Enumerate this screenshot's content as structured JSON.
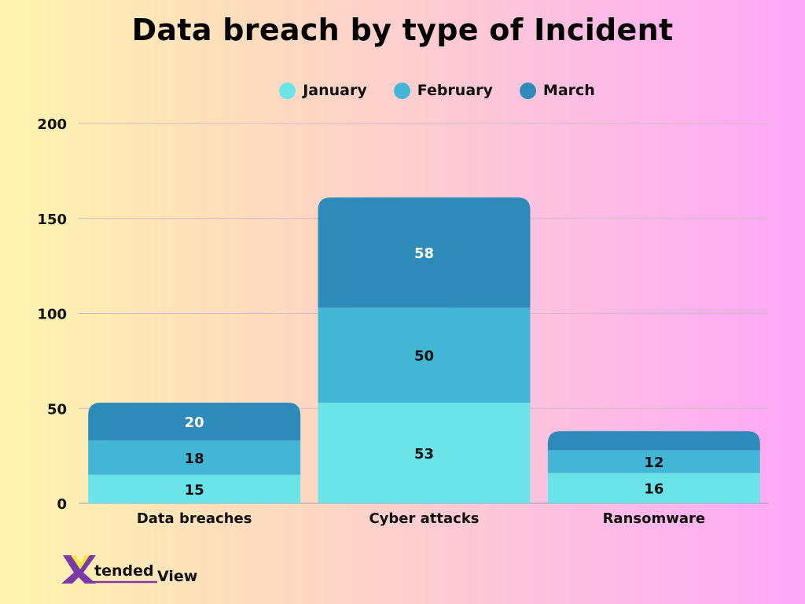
{
  "chart_data": {
    "type": "bar",
    "stacked": true,
    "title": "Data breach by type of Incident",
    "categories": [
      "Data breaches",
      "Cyber attacks",
      "Ransomware"
    ],
    "series": [
      {
        "name": "January",
        "values": [
          15,
          53,
          16
        ],
        "labels": [
          "15",
          "53",
          "16"
        ],
        "color": "#6ae4e8"
      },
      {
        "name": "February",
        "values": [
          18,
          50,
          12
        ],
        "labels": [
          "18",
          "50",
          "12"
        ],
        "color": "#42b6d4"
      },
      {
        "name": "March",
        "values": [
          20,
          58,
          10
        ],
        "labels": [
          "20",
          "58",
          ""
        ],
        "color": "#2e8ab8"
      }
    ],
    "ylim": [
      0,
      200
    ],
    "yticks": [
      "0",
      "50",
      "100",
      "150",
      "200"
    ],
    "grid": true,
    "legend": "top-center"
  },
  "logo": {
    "text": "XtendedView"
  }
}
